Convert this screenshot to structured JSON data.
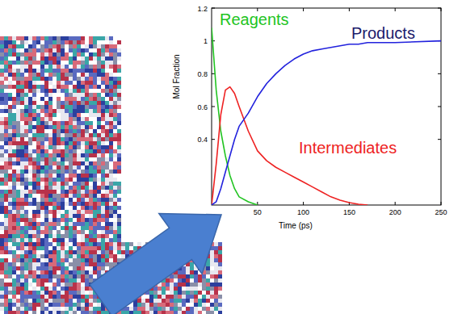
{
  "chart_data": {
    "type": "line",
    "x_label": "Time (ps)",
    "y_label": "Mol Fraction",
    "x": [
      0,
      5,
      10,
      15,
      20,
      25,
      30,
      40,
      50,
      60,
      70,
      80,
      90,
      100,
      110,
      120,
      130,
      140,
      150,
      160,
      170,
      180,
      200,
      250
    ],
    "series": [
      {
        "name": "Reagents",
        "color": "#22c422",
        "values": [
          1.08,
          0.7,
          0.45,
          0.3,
          0.18,
          0.1,
          0.05,
          0.02,
          0,
          null,
          null,
          null,
          null,
          null,
          null,
          null,
          null,
          null,
          null,
          null,
          null,
          null,
          null,
          null
        ]
      },
      {
        "name": "Intermediates",
        "color": "#ee2222",
        "values": [
          0,
          0.25,
          0.55,
          0.7,
          0.72,
          0.68,
          0.6,
          0.45,
          0.33,
          0.27,
          0.23,
          0.2,
          0.17,
          0.14,
          0.11,
          0.08,
          0.05,
          0.03,
          0.015,
          0.005,
          0,
          null,
          null,
          null
        ]
      },
      {
        "name": "Products",
        "color": "#2222dd",
        "values": [
          0,
          0.02,
          0.1,
          0.2,
          0.3,
          0.4,
          0.48,
          0.56,
          0.66,
          0.74,
          0.8,
          0.85,
          0.89,
          0.92,
          0.94,
          0.95,
          0.96,
          0.97,
          0.98,
          0.98,
          0.99,
          0.99,
          0.99,
          1.0
        ]
      }
    ],
    "xlim": [
      0,
      250
    ],
    "xticks": [
      50,
      100,
      150,
      200,
      250
    ],
    "ylim": [
      0,
      1.2
    ],
    "yticks": [
      0.4,
      0.6,
      0.8,
      1,
      1.2
    ],
    "grid": false
  }
}
